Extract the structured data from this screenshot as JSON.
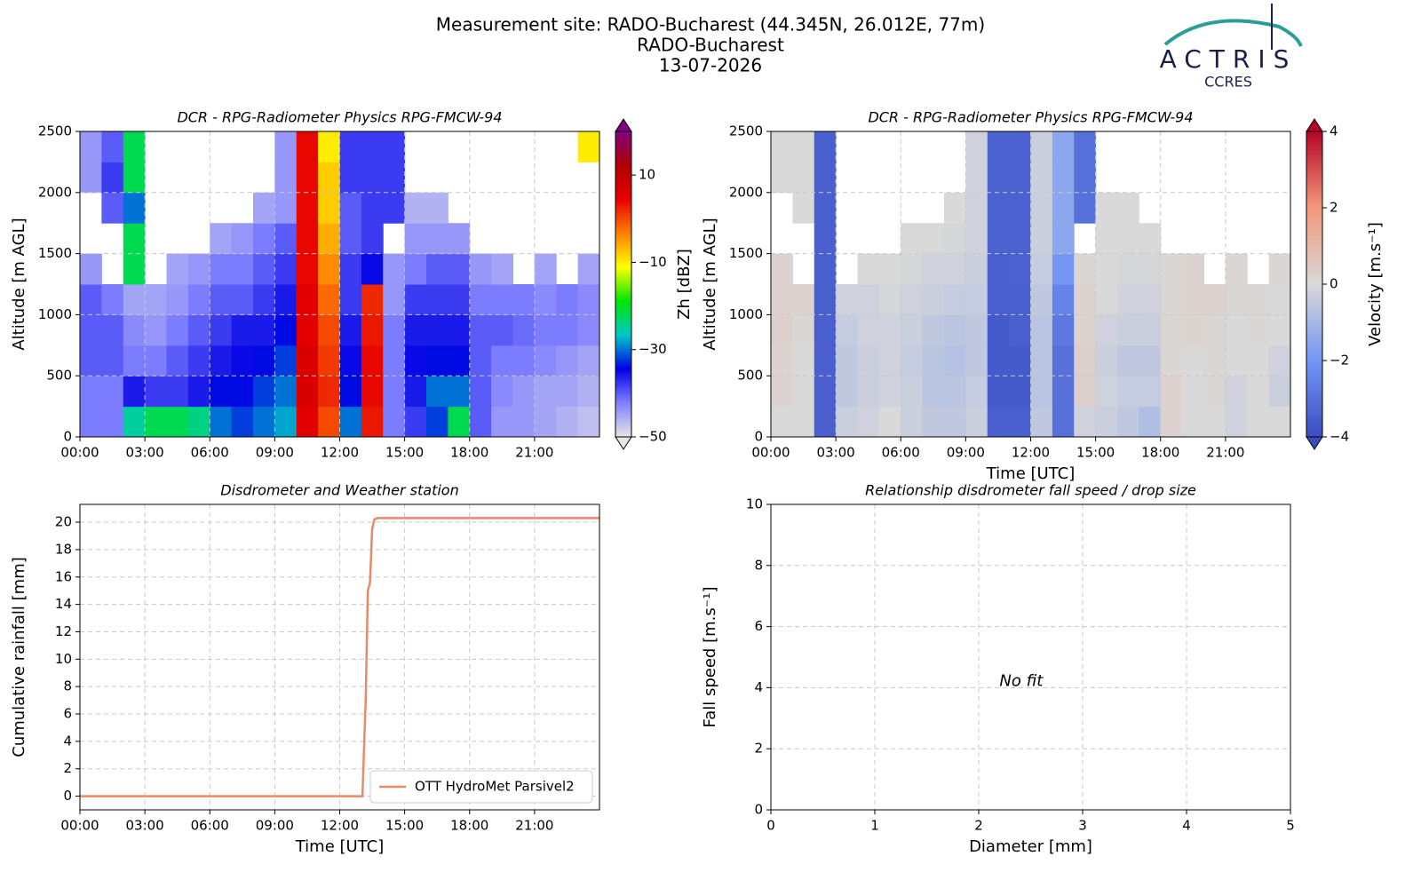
{
  "header": {
    "title": "Measurement site: RADO-Bucharest (44.345N, 26.012E, 77m)",
    "subtitle": "RADO-Bucharest",
    "date": "13-07-2026",
    "logo": "ACTRIS",
    "logo_subtitle": "CCRES"
  },
  "chart_data": [
    {
      "type": "heatmap",
      "title": "DCR - RPG-Radiometer Physics RPG-FMCW-94",
      "ylabel": "Altitude [m AGL]",
      "colorbar_label": "Zh [dBZ]",
      "xlim": [
        0,
        24
      ],
      "ylim": [
        0,
        2500
      ],
      "xticks": [
        {
          "value": 0,
          "label": "00:00"
        },
        {
          "value": 3,
          "label": "03:00"
        },
        {
          "value": 6,
          "label": "06:00"
        },
        {
          "value": 9,
          "label": "09:00"
        },
        {
          "value": 12,
          "label": "12:00"
        },
        {
          "value": 15,
          "label": "15:00"
        },
        {
          "value": 18,
          "label": "18:00"
        },
        {
          "value": 21,
          "label": "21:00"
        }
      ],
      "yticks": [
        0,
        500,
        1000,
        1500,
        2000,
        2500
      ],
      "grid": true,
      "clim": [
        -50,
        20
      ],
      "cticks": [
        {
          "value": -50,
          "label": "−50"
        },
        {
          "value": -30,
          "label": "−30"
        },
        {
          "value": -10,
          "label": "−10"
        },
        {
          "value": 10,
          "label": "10"
        }
      ],
      "colormap": [
        "#e6e6e6",
        "#8080ff",
        "#0000e6",
        "#00c8c8",
        "#00e600",
        "#ffff00",
        "#ff8000",
        "#e60000",
        "#b00000",
        "#800080"
      ],
      "xbins": [
        0,
        1,
        2,
        3,
        4,
        5,
        6,
        7,
        8,
        9,
        10,
        11,
        12,
        13,
        14,
        15,
        16,
        17,
        18,
        19,
        20,
        21,
        22,
        23,
        24
      ],
      "ybins": [
        0,
        250,
        500,
        750,
        1000,
        1250,
        1500,
        1750,
        2000,
        2250,
        2500
      ],
      "z": [
        [
          -42,
          -42,
          -25,
          -22,
          -22,
          -24,
          -30,
          -32,
          -30,
          -28,
          5,
          0,
          -30,
          3,
          -42,
          -38,
          -32,
          -22,
          -40,
          -44,
          -44,
          -45,
          -46,
          -47
        ],
        [
          -42,
          -42,
          -36,
          -38,
          -38,
          -36,
          -34,
          -34,
          -32,
          -30,
          6,
          2,
          -34,
          4,
          -42,
          -36,
          -30,
          -30,
          -40,
          -43,
          -44,
          -45,
          -45,
          -46
        ],
        [
          -40,
          -40,
          -42,
          -42,
          -40,
          -38,
          -36,
          -35,
          -34,
          -32,
          6,
          1,
          -35,
          4,
          -42,
          -35,
          -34,
          -34,
          -40,
          -42,
          -42,
          -43,
          -44,
          -45
        ],
        [
          -40,
          -40,
          -43,
          -44,
          -42,
          -40,
          -38,
          -36,
          -36,
          -34,
          5,
          0,
          -36,
          3,
          -42,
          -36,
          -36,
          -36,
          -40,
          -40,
          -41,
          -42,
          -42,
          -43
        ],
        [
          -40,
          -42,
          -45,
          -45,
          -44,
          -42,
          -40,
          -40,
          -38,
          -36,
          5,
          -2,
          -38,
          2,
          -44,
          -38,
          -38,
          -38,
          -42,
          -42,
          -42,
          -43,
          -42,
          -43
        ],
        [
          -44,
          null,
          -22,
          null,
          -45,
          -44,
          -42,
          -42,
          -40,
          -38,
          4,
          -4,
          -38,
          -35,
          -44,
          -42,
          -40,
          -40,
          -44,
          -45,
          null,
          -45,
          null,
          -45
        ],
        [
          null,
          null,
          -22,
          null,
          null,
          null,
          -45,
          -44,
          -42,
          -40,
          4,
          -6,
          -40,
          -38,
          null,
          -44,
          -44,
          -44,
          null,
          null,
          null,
          null,
          null,
          null
        ],
        [
          null,
          -40,
          -30,
          null,
          null,
          null,
          null,
          null,
          -45,
          -44,
          4,
          -8,
          -40,
          -38,
          -38,
          -46,
          -46,
          null,
          null,
          null,
          null,
          null,
          null,
          null
        ],
        [
          -44,
          -38,
          -22,
          null,
          null,
          null,
          null,
          null,
          null,
          -44,
          4,
          -8,
          -38,
          -38,
          -38,
          null,
          null,
          null,
          null,
          null,
          null,
          null,
          null,
          null
        ],
        [
          -44,
          -40,
          -22,
          null,
          null,
          null,
          null,
          null,
          null,
          -44,
          4,
          -10,
          -38,
          -38,
          -38,
          null,
          null,
          null,
          null,
          null,
          null,
          null,
          null,
          -10
        ]
      ]
    },
    {
      "type": "heatmap",
      "title": "DCR - RPG-Radiometer Physics RPG-FMCW-94",
      "ylabel": "Altitude [m AGL]",
      "xlabel": "Time [UTC]",
      "colorbar_label": "Velocity [m.s⁻¹]",
      "xlim": [
        0,
        24
      ],
      "ylim": [
        0,
        2500
      ],
      "xticks": [
        {
          "value": 0,
          "label": "00:00"
        },
        {
          "value": 3,
          "label": "03:00"
        },
        {
          "value": 6,
          "label": "06:00"
        },
        {
          "value": 9,
          "label": "09:00"
        },
        {
          "value": 12,
          "label": "12:00"
        },
        {
          "value": 15,
          "label": "15:00"
        },
        {
          "value": 18,
          "label": "18:00"
        },
        {
          "value": 21,
          "label": "21:00"
        }
      ],
      "yticks": [
        0,
        500,
        1000,
        1500,
        2000,
        2500
      ],
      "grid": true,
      "clim": [
        -4,
        4
      ],
      "cticks": [
        {
          "value": -4,
          "label": "−4"
        },
        {
          "value": -2,
          "label": "−2"
        },
        0,
        2,
        4
      ],
      "colormap": [
        "#3b4cc0",
        "#7396f5",
        "#d9d9d9",
        "#f4987a",
        "#b40426"
      ],
      "xbins": [
        0,
        1,
        2,
        3,
        4,
        5,
        6,
        7,
        8,
        9,
        10,
        11,
        12,
        13,
        14,
        15,
        16,
        17,
        18,
        19,
        20,
        21,
        22,
        23,
        24
      ],
      "ybins": [
        0,
        250,
        500,
        750,
        1000,
        1250,
        1500,
        1750,
        2000,
        2250,
        2500
      ],
      "z": [
        [
          0,
          0,
          -3.5,
          -0.3,
          -0.2,
          0,
          -0.3,
          -0.5,
          -0.5,
          -0.3,
          -3.5,
          -3.5,
          -0.5,
          -3,
          -0.2,
          -0.3,
          -0.5,
          -0.8,
          0.2,
          0,
          0,
          -0.2,
          0,
          0
        ],
        [
          0.2,
          0,
          -3.5,
          -0.5,
          -0.3,
          -0.2,
          -0.3,
          -0.6,
          -0.6,
          -0.4,
          -3.6,
          -3.6,
          -0.6,
          -3,
          0.3,
          -0.2,
          -0.4,
          -0.4,
          0.2,
          0,
          0.1,
          -0.2,
          0,
          -0.3
        ],
        [
          0.2,
          0,
          -3.5,
          -0.5,
          -0.3,
          -0.2,
          -0.4,
          -0.6,
          -0.7,
          -0.5,
          -3.6,
          -3.6,
          -0.6,
          -3,
          0.3,
          -0.3,
          -0.5,
          -0.5,
          0.1,
          0,
          0.1,
          0,
          0,
          -0.2
        ],
        [
          0.3,
          0.1,
          -3.5,
          -0.4,
          -0.2,
          -0.2,
          -0.3,
          -0.5,
          -0.6,
          -0.5,
          -3.6,
          -3.5,
          -0.6,
          -2.8,
          0.2,
          -0.2,
          -0.3,
          -0.3,
          0.1,
          0.2,
          0.1,
          0,
          0.1,
          0
        ],
        [
          0.2,
          0.2,
          -3.5,
          -0.2,
          -0.2,
          -0.1,
          -0.2,
          -0.3,
          -0.4,
          -0.4,
          -3.5,
          -3.5,
          -0.5,
          -2.5,
          0.2,
          0,
          -0.2,
          -0.2,
          0.1,
          0.2,
          0.2,
          0.1,
          0.1,
          0
        ],
        [
          0.2,
          null,
          -3.5,
          null,
          0,
          0,
          -0.1,
          -0.2,
          -0.2,
          -0.3,
          -3.5,
          -3.4,
          -0.4,
          -2,
          0.1,
          0,
          -0.1,
          -0.1,
          0.1,
          0.2,
          null,
          0.1,
          null,
          0.1
        ],
        [
          null,
          null,
          -3.5,
          null,
          null,
          null,
          0,
          0,
          -0.1,
          -0.2,
          -3.4,
          -3.4,
          -0.3,
          -1.5,
          null,
          0,
          0,
          0,
          null,
          null,
          null,
          null,
          null,
          null
        ],
        [
          null,
          0,
          -3.5,
          null,
          null,
          null,
          null,
          null,
          0,
          -0.2,
          -3.4,
          -3.4,
          -0.3,
          -1.5,
          -3,
          0,
          0,
          null,
          null,
          null,
          null,
          null,
          null,
          null
        ],
        [
          0,
          0,
          -3.5,
          null,
          null,
          null,
          null,
          null,
          null,
          -0.2,
          -3.4,
          -3.4,
          -0.3,
          -1.5,
          -3,
          null,
          null,
          null,
          null,
          null,
          null,
          null,
          null,
          null
        ],
        [
          0,
          0,
          -3.5,
          null,
          null,
          null,
          null,
          null,
          null,
          -0.2,
          -3.4,
          -3.4,
          -0.3,
          -1.5,
          -3,
          null,
          null,
          null,
          null,
          null,
          null,
          null,
          null,
          null
        ]
      ]
    },
    {
      "type": "line",
      "title": "Disdrometer and Weather station",
      "xlabel": "Time [UTC]",
      "ylabel": "Cumulative rainfall [mm]",
      "xlim": [
        0,
        24
      ],
      "ylim": [
        -1,
        21.3
      ],
      "xticks": [
        {
          "value": 0,
          "label": "00:00"
        },
        {
          "value": 3,
          "label": "03:00"
        },
        {
          "value": 6,
          "label": "06:00"
        },
        {
          "value": 9,
          "label": "09:00"
        },
        {
          "value": 12,
          "label": "12:00"
        },
        {
          "value": 15,
          "label": "15:00"
        },
        {
          "value": 18,
          "label": "18:00"
        },
        {
          "value": 21,
          "label": "21:00"
        }
      ],
      "yticks": [
        0,
        2,
        4,
        6,
        8,
        10,
        12,
        14,
        16,
        18,
        20
      ],
      "grid": true,
      "legend": "lower right",
      "x": [
        0,
        13.05,
        13.2,
        13.3,
        13.4,
        13.5,
        13.6,
        13.75,
        24
      ],
      "series": [
        {
          "name": "OTT HydroMet Parsivel2",
          "color": "#e8896a",
          "values": [
            0,
            0,
            7,
            15,
            15.6,
            19.5,
            20.2,
            20.3,
            20.3
          ]
        }
      ]
    },
    {
      "type": "scatter",
      "title": "Relationship disdrometer fall speed / drop size",
      "xlabel": "Diameter [mm]",
      "ylabel": "Fall speed [m.s⁻¹]",
      "xlim": [
        0,
        5
      ],
      "ylim": [
        0,
        10
      ],
      "xticks": [
        0,
        1,
        2,
        3,
        4,
        5
      ],
      "yticks": [
        0,
        2,
        4,
        6,
        8,
        10
      ],
      "grid": true,
      "annotation": "No fit"
    }
  ]
}
